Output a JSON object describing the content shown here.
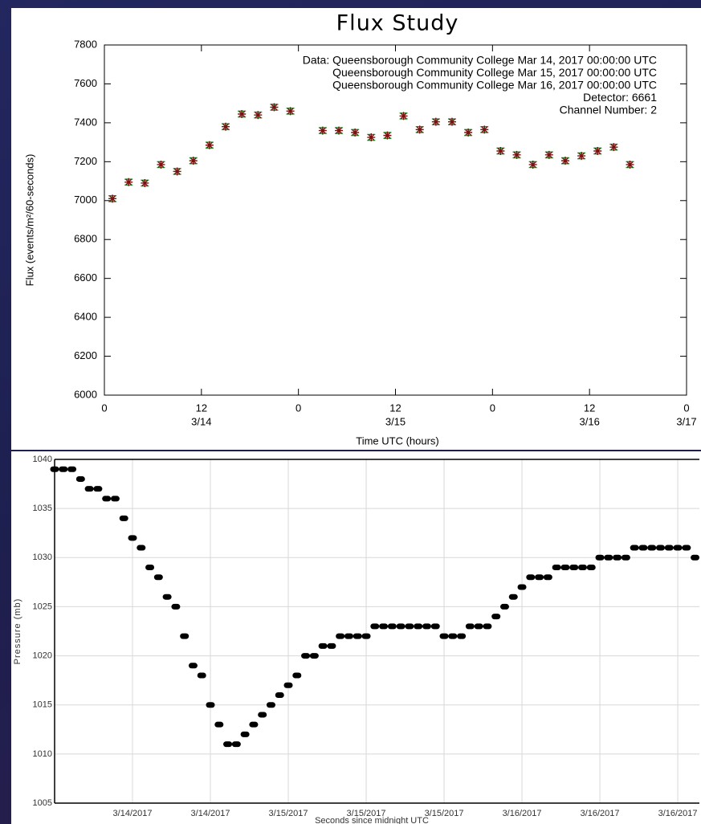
{
  "chart_data": [
    {
      "type": "scatter",
      "title": "Flux Study",
      "x_label": "Time UTC (hours)",
      "y_label": "Flux (events/m²/60-seconds)",
      "annotations": [
        "Data: Queensborough Community College Mar 14, 2017 00:00:00 UTC",
        "Queensborough Community College Mar 15, 2017 00:00:00 UTC",
        "Queensborough Community College Mar 16, 2017 00:00:00 UTC",
        "Detector: 6661",
        "Channel Number: 2"
      ],
      "x": [
        1,
        3,
        5,
        7,
        9,
        11,
        13,
        15,
        17,
        19,
        21,
        23,
        27,
        29,
        31,
        33,
        35,
        37,
        39,
        41,
        43,
        45,
        47,
        49,
        51,
        53,
        55,
        57,
        59,
        61,
        63,
        65
      ],
      "values": [
        7010,
        7095,
        7090,
        7185,
        7150,
        7205,
        7285,
        7380,
        7445,
        7440,
        7480,
        7460,
        7360,
        7360,
        7350,
        7325,
        7335,
        7435,
        7365,
        7405,
        7405,
        7350,
        7365,
        7255,
        7235,
        7185,
        7235,
        7205,
        7230,
        7255,
        7275,
        7185
      ],
      "errors": [
        15,
        15,
        15,
        15,
        15,
        15,
        15,
        15,
        15,
        15,
        15,
        15,
        15,
        15,
        15,
        15,
        15,
        15,
        15,
        15,
        15,
        15,
        15,
        15,
        15,
        15,
        15,
        15,
        15,
        15,
        15,
        15
      ],
      "color": "#7a1010",
      "error_color": "#2e8b2e",
      "xlim": [
        0,
        72
      ],
      "xticks": [
        0,
        12,
        {
          "value": 24,
          "label": "0"
        },
        {
          "value": 36,
          "label": "12"
        },
        {
          "value": 48,
          "label": "0"
        },
        {
          "value": 60,
          "label": "12"
        },
        {
          "value": 72,
          "label": "0"
        }
      ],
      "xticks_dates": [
        {
          "value": 12,
          "label": "3/14"
        },
        {
          "value": 36,
          "label": "3/15"
        },
        {
          "value": 60,
          "label": "3/16"
        },
        {
          "value": 72,
          "label": "3/17"
        }
      ],
      "ylim": [
        6000,
        7800
      ],
      "yticks": [
        6000,
        6200,
        6400,
        6600,
        6800,
        7000,
        7200,
        7400,
        7600,
        7800
      ],
      "grid": false
    },
    {
      "type": "scatter",
      "x_label": "Seconds since midnight UTC",
      "y_label": "Pressure (mb)",
      "x": [
        0,
        1,
        2,
        3,
        4,
        5,
        6,
        7,
        8,
        9,
        10,
        11,
        12,
        13,
        14,
        15,
        16,
        17,
        18,
        19,
        20,
        21,
        22,
        23,
        24,
        25,
        26,
        27,
        28,
        29,
        30,
        31,
        32,
        33,
        34,
        35,
        36,
        37,
        38,
        39,
        40,
        41,
        42,
        43,
        44,
        45,
        46,
        47,
        48,
        49,
        50,
        51,
        52,
        53,
        54,
        55,
        56,
        57,
        58,
        59,
        60,
        61,
        62,
        63,
        64,
        65,
        66,
        67,
        68,
        69,
        70,
        71,
        72,
        73,
        74
      ],
      "values": [
        1039,
        1039,
        1039,
        1038,
        1037,
        1037,
        1036,
        1036,
        1034,
        1032,
        1031,
        1029,
        1028,
        1026,
        1025,
        1022,
        1019,
        1018,
        1015,
        1013,
        1011,
        1011,
        1012,
        1013,
        1014,
        1015,
        1016,
        1017,
        1018,
        1020,
        1020,
        1021,
        1021,
        1022,
        1022,
        1022,
        1022,
        1023,
        1023,
        1023,
        1023,
        1023,
        1023,
        1023,
        1023,
        1022,
        1022,
        1022,
        1023,
        1023,
        1023,
        1024,
        1025,
        1026,
        1027,
        1028,
        1028,
        1028,
        1029,
        1029,
        1029,
        1029,
        1029,
        1030,
        1030,
        1030,
        1030,
        1031,
        1031,
        1031,
        1031,
        1031,
        1031,
        1031,
        1030
      ],
      "color": "#000000",
      "xlim": [
        0,
        74.5
      ],
      "xticks": [
        {
          "value": 9,
          "label": "3/14/2017"
        },
        {
          "value": 18,
          "label": "3/14/2017"
        },
        {
          "value": 27,
          "label": "3/15/2017"
        },
        {
          "value": 36,
          "label": "3/15/2017"
        },
        {
          "value": 45,
          "label": "3/15/2017"
        },
        {
          "value": 54,
          "label": "3/16/2017"
        },
        {
          "value": 63,
          "label": "3/16/2017"
        },
        {
          "value": 72,
          "label": "3/16/2017"
        }
      ],
      "ylim": [
        1005,
        1040
      ],
      "yticks": [
        1005,
        1010,
        1015,
        1020,
        1025,
        1030,
        1035,
        1040
      ],
      "grid": true
    }
  ]
}
